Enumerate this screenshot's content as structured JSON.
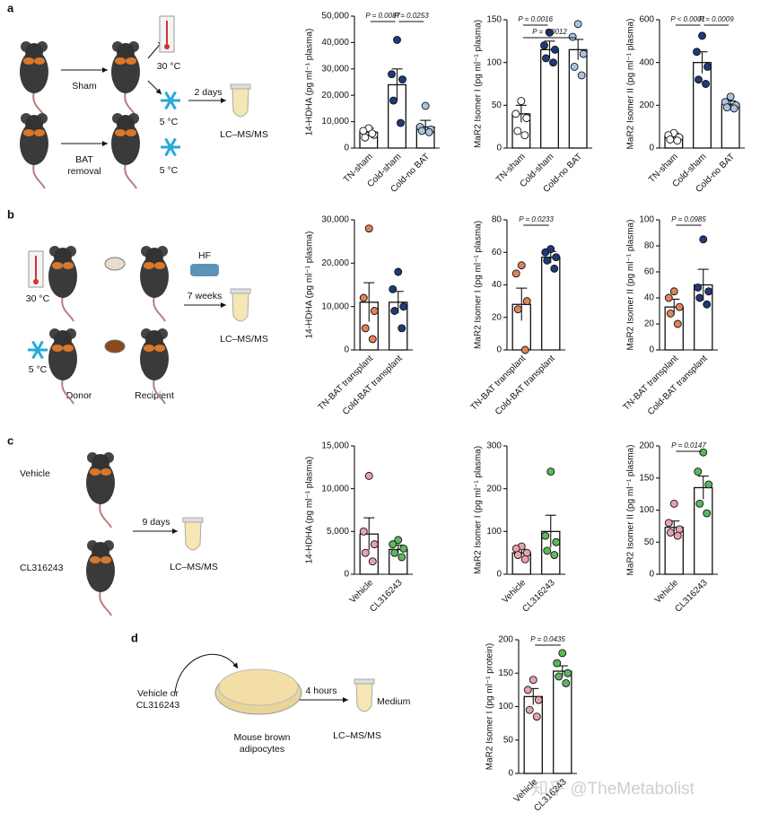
{
  "labels": [
    "a",
    "b",
    "c",
    "d"
  ],
  "schematic": {
    "a": {
      "sham": "Sham",
      "warm": "30 °C",
      "cold_top": "5 °C",
      "duration": "2 days",
      "method": "LC–MS/MS",
      "removal": [
        "BAT",
        "removal"
      ],
      "cold_bottom": "5 °C"
    },
    "b": {
      "warm": "30 °C",
      "diet": "HF",
      "duration": "7 weeks",
      "method": "LC–MS/MS",
      "cold": "5 °C",
      "donor": "Donor",
      "recipient": "Recipient"
    },
    "c": {
      "vehicle": "Vehicle",
      "drug": "CL316243",
      "duration": "9 days",
      "method": "LC–MS/MS"
    },
    "d": {
      "treatment": [
        "Vehicle or",
        "CL316243"
      ],
      "cells": [
        "Mouse brown",
        "adipocytes"
      ],
      "duration": "4 hours",
      "medium": "Medium",
      "method": "LC–MS/MS"
    }
  },
  "watermark": "知乎 @TheMetabolist",
  "chart_data": [
    {
      "type": "bar",
      "ylabel": "14-HDHA (pg ml⁻¹ plasma)",
      "categories": [
        "TN-sham",
        "Cold-sham",
        "Cold-no BAT"
      ],
      "values": [
        6000,
        24000,
        8000
      ],
      "errors": [
        1500,
        6000,
        2500
      ],
      "points": [
        [
          7500,
          6500,
          5000,
          4000,
          5500
        ],
        [
          41000,
          28000,
          26000,
          18000,
          9500
        ],
        [
          16000,
          8000,
          7000,
          6500,
          6000
        ]
      ],
      "colors": [
        "#ffffff",
        "#1f3a78",
        "#a9c3e0"
      ],
      "ylim": [
        0,
        50000
      ],
      "yticks": [
        0,
        {
          "value": 10000,
          "label": "10,000"
        },
        {
          "value": 20000,
          "label": "20,000"
        },
        {
          "value": 30000,
          "label": "30,000"
        },
        {
          "value": 40000,
          "label": "40,000"
        },
        {
          "value": 50000,
          "label": "50,000"
        }
      ],
      "annotations": [
        {
          "text": "P = 0.0087",
          "between": [
            "TN-sham",
            "Cold-sham"
          ]
        },
        {
          "text": "P = 0.0253",
          "between": [
            "Cold-sham",
            "Cold-no BAT"
          ]
        }
      ]
    },
    {
      "type": "bar",
      "ylabel": "MaR2 Isomer I (pg ml⁻¹ plasma)",
      "categories": [
        "TN-sham",
        "Cold-sham",
        "Cold-no BAT"
      ],
      "values": [
        40,
        115,
        115
      ],
      "errors": [
        10,
        10,
        12
      ],
      "points": [
        [
          55,
          40,
          35,
          20,
          15
        ],
        [
          135,
          120,
          115,
          105,
          100
        ],
        [
          145,
          130,
          110,
          95,
          85
        ]
      ],
      "colors": [
        "#ffffff",
        "#1f3a78",
        "#a9c3e0"
      ],
      "ylim": [
        0,
        150
      ],
      "yticks": [
        0,
        50,
        100,
        150
      ],
      "annotations": [
        {
          "text": "P = 0.0016",
          "between": [
            "TN-sham",
            "Cold-sham"
          ]
        },
        {
          "text": "P = 0.0012",
          "between": [
            "TN-sham",
            "Cold-no BAT"
          ]
        }
      ]
    },
    {
      "type": "bar",
      "ylabel": "MaR2 Isomer II (pg ml⁻¹ plasma)",
      "categories": [
        "TN-sham",
        "Cold-sham",
        "Cold-no BAT"
      ],
      "values": [
        55,
        400,
        205
      ],
      "errors": [
        15,
        50,
        15
      ],
      "points": [
        [
          70,
          60,
          50,
          40,
          35
        ],
        [
          525,
          450,
          380,
          320,
          300
        ],
        [
          240,
          215,
          200,
          190,
          185
        ]
      ],
      "colors": [
        "#ffffff",
        "#1f3a78",
        "#a9c3e0"
      ],
      "ylim": [
        0,
        600
      ],
      "yticks": [
        0,
        200,
        400,
        600
      ],
      "annotations": [
        {
          "text": "P < 0.0001",
          "between": [
            "TN-sham",
            "Cold-sham"
          ]
        },
        {
          "text": "P = 0.0009",
          "between": [
            "Cold-sham",
            "Cold-no BAT"
          ]
        }
      ]
    },
    {
      "type": "bar",
      "ylabel": "14-HDHA (pg ml⁻¹ plasma)",
      "categories": [
        "TN-BAT transplant",
        "Cold-BAT transplant"
      ],
      "values": [
        11000,
        11000
      ],
      "errors": [
        4500,
        2500
      ],
      "points": [
        [
          28000,
          12000,
          9000,
          5000,
          2500
        ],
        [
          18000,
          14000,
          10000,
          9000,
          5000
        ]
      ],
      "colors": [
        "#e0835a",
        "#1f3a78"
      ],
      "ylim": [
        0,
        30000
      ],
      "yticks": [
        0,
        {
          "value": 10000,
          "label": "10,000"
        },
        {
          "value": 20000,
          "label": "20,000"
        },
        {
          "value": 30000,
          "label": "30,000"
        }
      ],
      "annotations": []
    },
    {
      "type": "bar",
      "ylabel": "MaR2 Isomer I (pg ml⁻¹ plasma)",
      "categories": [
        "TN-BAT transplant",
        "Cold-BAT transplant"
      ],
      "values": [
        28,
        57
      ],
      "errors": [
        10,
        3.5
      ],
      "points": [
        [
          52,
          47,
          30,
          25,
          0
        ],
        [
          62,
          60,
          57,
          55,
          50
        ]
      ],
      "colors": [
        "#e0835a",
        "#1f3a78"
      ],
      "ylim": [
        0,
        80
      ],
      "yticks": [
        0,
        20,
        40,
        60,
        80
      ],
      "annotations": [
        {
          "text": "P = 0.0233",
          "between": [
            "TN-BAT transplant",
            "Cold-BAT transplant"
          ]
        }
      ]
    },
    {
      "type": "bar",
      "ylabel": "MaR2 Isomer II (pg ml⁻¹ plasma)",
      "categories": [
        "TN-BAT transplant",
        "Cold-BAT transplant"
      ],
      "values": [
        33,
        50
      ],
      "errors": [
        6,
        12
      ],
      "points": [
        [
          45,
          40,
          33,
          28,
          20
        ],
        [
          85,
          48,
          45,
          40,
          35
        ]
      ],
      "colors": [
        "#e0835a",
        "#1f3a78"
      ],
      "ylim": [
        0,
        100
      ],
      "yticks": [
        0,
        20,
        40,
        60,
        80,
        100
      ],
      "annotations": [
        {
          "text": "P = 0.0985",
          "between": [
            "TN-BAT transplant",
            "Cold-BAT transplant"
          ]
        }
      ]
    },
    {
      "type": "bar",
      "ylabel": "14-HDHA (pg ml⁻¹ plasma)",
      "categories": [
        "Vehicle",
        "CL316243"
      ],
      "values": [
        4700,
        2900
      ],
      "errors": [
        1900,
        500
      ],
      "points": [
        [
          11500,
          5000,
          3500,
          2500,
          1500
        ],
        [
          4000,
          3500,
          3000,
          2500,
          2000
        ]
      ],
      "colors": [
        "#e8a3ab",
        "#5cb85c"
      ],
      "ylim": [
        0,
        15000
      ],
      "yticks": [
        0,
        {
          "value": 5000,
          "label": "5,000"
        },
        {
          "value": 10000,
          "label": "10,000"
        },
        {
          "value": 15000,
          "label": "15,000"
        }
      ],
      "annotations": []
    },
    {
      "type": "bar",
      "ylabel": "MaR2 Isomer I (pg ml⁻¹ plasma)",
      "categories": [
        "Vehicle",
        "CL316243"
      ],
      "values": [
        50,
        100
      ],
      "errors": [
        8,
        38
      ],
      "points": [
        [
          65,
          60,
          50,
          45,
          35
        ],
        [
          240,
          90,
          75,
          55,
          45
        ]
      ],
      "colors": [
        "#e8a3ab",
        "#5cb85c"
      ],
      "ylim": [
        0,
        300
      ],
      "yticks": [
        0,
        100,
        200,
        300
      ],
      "annotations": []
    },
    {
      "type": "bar",
      "ylabel": "MaR2 Isomer II (pg ml⁻¹ plasma)",
      "categories": [
        "Vehicle",
        "CL316243"
      ],
      "values": [
        73,
        135
      ],
      "errors": [
        10,
        18
      ],
      "points": [
        [
          110,
          80,
          70,
          65,
          60
        ],
        [
          190,
          160,
          140,
          110,
          95
        ]
      ],
      "colors": [
        "#e8a3ab",
        "#5cb85c"
      ],
      "ylim": [
        0,
        200
      ],
      "yticks": [
        0,
        50,
        100,
        150,
        200
      ],
      "annotations": [
        {
          "text": "P = 0.0147",
          "between": [
            "Vehicle",
            "CL316243"
          ]
        }
      ]
    },
    {
      "type": "bar",
      "ylabel": "MaR2 Isomer I (pg ml⁻¹ protein)",
      "categories": [
        "Vehicle",
        "CL316243"
      ],
      "values": [
        115,
        153
      ],
      "errors": [
        12,
        8
      ],
      "points": [
        [
          140,
          125,
          110,
          95,
          85
        ],
        [
          180,
          165,
          150,
          145,
          135
        ]
      ],
      "colors": [
        "#e8a3ab",
        "#5cb85c"
      ],
      "ylim": [
        0,
        200
      ],
      "yticks": [
        0,
        50,
        100,
        150,
        200
      ],
      "annotations": [
        {
          "text": "P = 0.0435",
          "between": [
            "Vehicle",
            "CL316243"
          ]
        }
      ]
    }
  ]
}
